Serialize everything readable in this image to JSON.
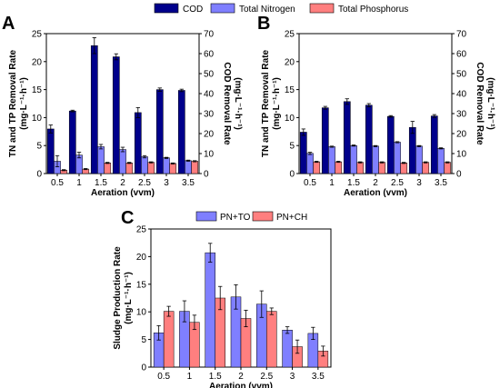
{
  "legend_top": [
    {
      "name": "COD",
      "color": "#00008B"
    },
    {
      "name": "Total Nitrogen",
      "color": "#7F7FFF"
    },
    {
      "name": "Total Phosphorus",
      "color": "#FF7F7F"
    }
  ],
  "legend_bottom": [
    {
      "name": "PN+TO",
      "color": "#7F7FFF"
    },
    {
      "name": "PN+CH",
      "color": "#FF7F7F"
    }
  ],
  "chart_data": [
    {
      "panel": "A",
      "type": "bar",
      "categories": [
        "0.5",
        "1",
        "1.5",
        "2",
        "2.5",
        "3",
        "3.5"
      ],
      "xlabel": "Aeration (vvm)",
      "ylabel_left": "TN and TP Removal Rate",
      "ylabel_left_unit": "(mg·L⁻¹·h⁻¹)",
      "ylabel_right": "COD Removal Rate",
      "ylabel_right_unit": "(mg·L⁻¹·h⁻¹)",
      "ylim_left": [
        0,
        25
      ],
      "ylim_right": [
        0,
        70
      ],
      "yticks_left": [
        "0",
        "5",
        "10",
        "15",
        "20",
        "25"
      ],
      "yticks_right": [
        "0",
        "10",
        "20",
        "30",
        "40",
        "50",
        "60",
        "70"
      ],
      "series": [
        {
          "name": "COD",
          "axis": "right",
          "values": [
            22.3,
            31.3,
            64.0,
            58.4,
            30.5,
            42.0,
            41.6
          ],
          "errors": [
            2.0,
            0.4,
            4.0,
            1.5,
            2.5,
            0.8,
            0.6
          ]
        },
        {
          "name": "Total Nitrogen",
          "axis": "left",
          "values": [
            2.2,
            3.3,
            4.8,
            4.3,
            3.0,
            2.8,
            2.3
          ],
          "errors": [
            1.0,
            0.5,
            0.4,
            0.4,
            0.2,
            0.1,
            0.1
          ]
        },
        {
          "name": "Total Phosphorus",
          "axis": "left",
          "values": [
            0.6,
            0.8,
            1.9,
            1.9,
            2.0,
            1.8,
            2.2
          ],
          "errors": [
            0.1,
            0.1,
            0.1,
            0.1,
            0.1,
            0.1,
            0.1
          ]
        }
      ]
    },
    {
      "panel": "B",
      "type": "bar",
      "categories": [
        "0.5",
        "1",
        "1.5",
        "2",
        "2.5",
        "3",
        "3.5"
      ],
      "xlabel": "Aeration (vvm)",
      "ylabel_left": "TN and TP Removal Rate",
      "ylabel_left_unit": "(mg·L⁻¹·h⁻¹)",
      "ylabel_right": "COD Removal Rate",
      "ylabel_right_unit": "(mg·L⁻¹·h⁻¹)",
      "ylim_left": [
        0,
        25
      ],
      "ylim_right": [
        0,
        70
      ],
      "yticks_left": [
        "0",
        "5",
        "10",
        "15",
        "20",
        "25"
      ],
      "yticks_right": [
        "0",
        "10",
        "20",
        "30",
        "40",
        "50",
        "60",
        "70"
      ],
      "series": [
        {
          "name": "COD",
          "axis": "right",
          "values": [
            20.7,
            32.9,
            36.0,
            34.2,
            28.6,
            23.1,
            28.8
          ],
          "errors": [
            1.6,
            0.7,
            1.4,
            0.8,
            0.4,
            3.0,
            0.7
          ]
        },
        {
          "name": "Total Nitrogen",
          "axis": "left",
          "values": [
            3.6,
            4.8,
            5.0,
            4.9,
            5.6,
            4.9,
            4.5
          ],
          "errors": [
            0.2,
            0.1,
            0.1,
            0.1,
            0.1,
            0.1,
            0.1
          ]
        },
        {
          "name": "Total Phosphorus",
          "axis": "left",
          "values": [
            2.1,
            2.1,
            2.0,
            2.0,
            1.9,
            2.0,
            2.0
          ],
          "errors": [
            0.1,
            0.1,
            0.1,
            0.1,
            0.1,
            0.1,
            0.1
          ]
        }
      ]
    },
    {
      "panel": "C",
      "type": "bar",
      "categories": [
        "0.5",
        "1",
        "1.5",
        "2",
        "2.5",
        "3",
        "3.5"
      ],
      "xlabel": "Aeration (vvm)",
      "ylabel": "Sludge Production Rate",
      "ylabel_unit": "(mg·L⁻¹·h⁻¹)",
      "ylim": [
        0,
        25
      ],
      "yticks": [
        "0",
        "5",
        "10",
        "15",
        "20",
        "25"
      ],
      "series": [
        {
          "name": "PN+TO",
          "values": [
            6.2,
            10.1,
            20.7,
            12.7,
            11.4,
            6.7,
            6.1
          ],
          "errors": [
            1.3,
            1.9,
            1.7,
            2.2,
            2.4,
            0.6,
            1.1
          ]
        },
        {
          "name": "PN+CH",
          "values": [
            10.1,
            8.1,
            12.5,
            8.8,
            10.1,
            3.7,
            2.9
          ],
          "errors": [
            0.9,
            1.3,
            2.1,
            1.5,
            0.6,
            1.2,
            0.9
          ]
        }
      ]
    }
  ]
}
